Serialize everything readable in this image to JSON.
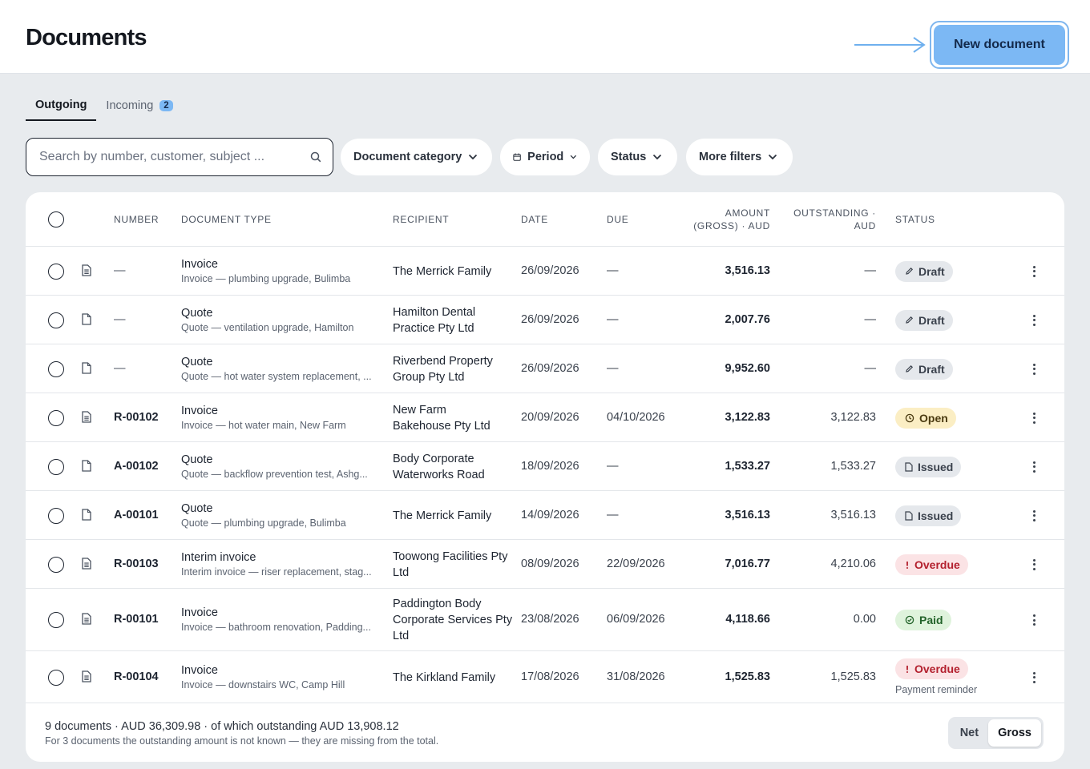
{
  "header": {
    "title": "Documents",
    "new_button": "New document"
  },
  "tabs": [
    {
      "label": "Outgoing",
      "active": true
    },
    {
      "label": "Incoming",
      "badge": "2"
    }
  ],
  "search": {
    "placeholder": "Search by number, customer, subject ..."
  },
  "filters": {
    "category": "Document category",
    "period": "Period",
    "status": "Status",
    "more": "More filters"
  },
  "columns": {
    "number": "NUMBER",
    "doc_type": "DOCUMENT TYPE",
    "recipient": "RECIPIENT",
    "date": "DATE",
    "due": "DUE",
    "amount_l1": "AMOUNT",
    "amount_l2": "(GROSS) · AUD",
    "outstanding_l1": "OUTSTANDING ·",
    "outstanding_l2": "AUD",
    "status": "STATUS"
  },
  "rows": [
    {
      "icon": "document-lines-icon",
      "number": "—",
      "type": "Invoice",
      "subject": "Invoice — plumbing upgrade, Bulimba",
      "recipient": "The Merrick Family",
      "date": "26/09/2026",
      "due": "—",
      "amount": "3,516.13",
      "outstanding": "—",
      "status": "Draft",
      "status_kind": "draft"
    },
    {
      "icon": "document-blank-icon",
      "number": "—",
      "type": "Quote",
      "subject": "Quote — ventilation upgrade, Hamilton",
      "recipient": "Hamilton Dental Practice Pty Ltd",
      "date": "26/09/2026",
      "due": "—",
      "amount": "2,007.76",
      "outstanding": "—",
      "status": "Draft",
      "status_kind": "draft"
    },
    {
      "icon": "document-blank-icon",
      "number": "—",
      "type": "Quote",
      "subject": "Quote — hot water system replacement, ...",
      "recipient": "Riverbend Property Group Pty Ltd",
      "date": "26/09/2026",
      "due": "—",
      "amount": "9,952.60",
      "outstanding": "—",
      "status": "Draft",
      "status_kind": "draft"
    },
    {
      "icon": "document-lines-icon",
      "number": "R-00102",
      "type": "Invoice",
      "subject": "Invoice — hot water main, New Farm",
      "recipient": "New Farm Bakehouse Pty Ltd",
      "date": "20/09/2026",
      "due": "04/10/2026",
      "amount": "3,122.83",
      "outstanding": "3,122.83",
      "status": "Open",
      "status_kind": "open"
    },
    {
      "icon": "document-blank-icon",
      "number": "A-00102",
      "type": "Quote",
      "subject": "Quote — backflow prevention test, Ashg...",
      "recipient": "Body Corporate Waterworks Road",
      "date": "18/09/2026",
      "due": "—",
      "amount": "1,533.27",
      "outstanding": "1,533.27",
      "status": "Issued",
      "status_kind": "issued"
    },
    {
      "icon": "document-blank-icon",
      "number": "A-00101",
      "type": "Quote",
      "subject": "Quote — plumbing upgrade, Bulimba",
      "recipient": "The Merrick Family",
      "date": "14/09/2026",
      "due": "—",
      "amount": "3,516.13",
      "outstanding": "3,516.13",
      "status": "Issued",
      "status_kind": "issued"
    },
    {
      "icon": "document-lines-icon",
      "number": "R-00103",
      "type": "Interim invoice",
      "subject": "Interim invoice — riser replacement, stag...",
      "recipient": "Toowong Facilities Pty Ltd",
      "date": "08/09/2026",
      "due": "22/09/2026",
      "amount": "7,016.77",
      "outstanding": "4,210.06",
      "status": "Overdue",
      "status_kind": "overdue"
    },
    {
      "icon": "document-lines-icon",
      "number": "R-00101",
      "type": "Invoice",
      "subject": "Invoice — bathroom renovation, Padding...",
      "recipient": "Paddington Body Corporate Services Pty Ltd",
      "date": "23/08/2026",
      "due": "06/09/2026",
      "amount": "4,118.66",
      "outstanding": "0.00",
      "status": "Paid",
      "status_kind": "paid"
    },
    {
      "icon": "document-lines-icon",
      "number": "R-00104",
      "type": "Invoice",
      "subject": "Invoice — downstairs WC, Camp Hill",
      "recipient": "The Kirkland Family",
      "date": "17/08/2026",
      "due": "31/08/2026",
      "amount": "1,525.83",
      "outstanding": "1,525.83",
      "status": "Overdue",
      "status_kind": "overdue",
      "note": "Payment reminder"
    }
  ],
  "footer": {
    "summary": "9 documents · AUD 36,309.98 · of which outstanding AUD 13,908.12",
    "note": "For 3 documents the outstanding amount is not known — they are missing from the total.",
    "toggle": [
      "Net",
      "Gross"
    ],
    "toggle_selected": "Gross"
  },
  "colors": {
    "accent": "#7cb8f4",
    "overdue": "#b3202e",
    "paid": "#23632a",
    "open": "#fbeec4"
  }
}
